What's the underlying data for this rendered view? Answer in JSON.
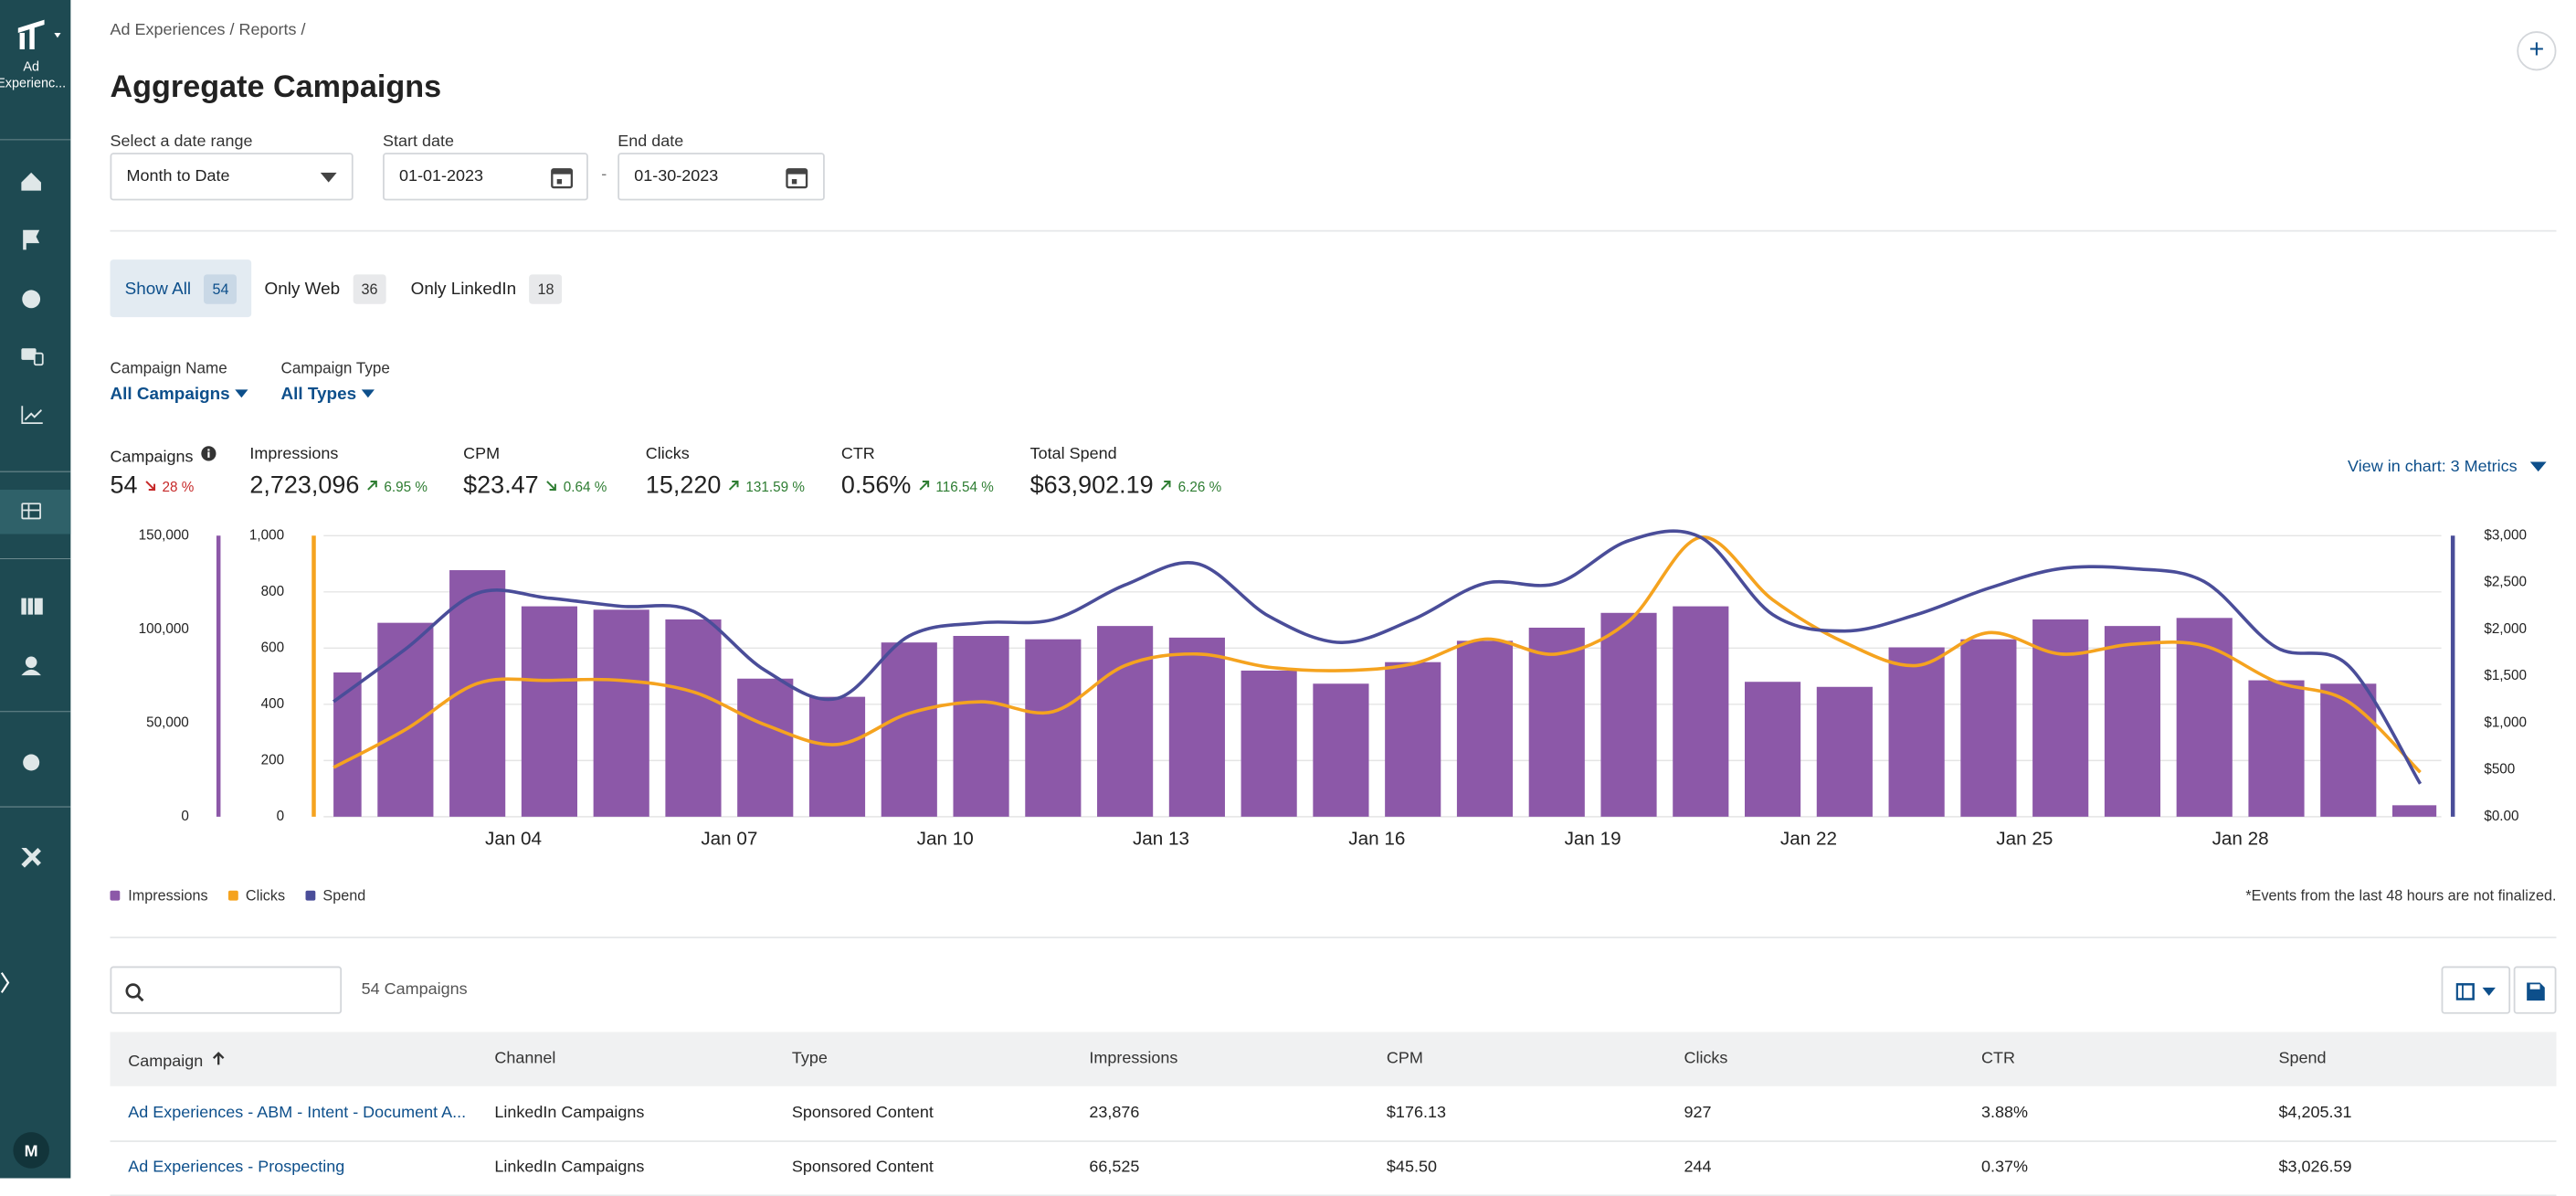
{
  "breadcrumb": [
    "Ad Experiences",
    "Reports"
  ],
  "sidebar": {
    "app_label_1": "Ad",
    "app_label_2": "Experienc...",
    "avatar": "M"
  },
  "title": "Aggregate Campaigns",
  "filters": {
    "date_range_label": "Select a date range",
    "date_range_value": "Month to Date",
    "start_label": "Start date",
    "start_value": "01-01-2023",
    "separator": "-",
    "end_label": "End date",
    "end_value": "01-30-2023"
  },
  "tabs": [
    {
      "label": "Show All",
      "count": "54",
      "active": true
    },
    {
      "label": "Only Web",
      "count": "36"
    },
    {
      "label": "Only LinkedIn",
      "count": "18"
    }
  ],
  "dropdowns": [
    {
      "label": "Campaign Name",
      "value": "All Campaigns"
    },
    {
      "label": "Campaign Type",
      "value": "All Types"
    }
  ],
  "metrics": [
    {
      "label": "Campaigns",
      "value": "54",
      "change": "28 %",
      "direction": "down",
      "color": "#c62828",
      "info": true
    },
    {
      "label": "Impressions",
      "value": "2,723,096",
      "change": "6.95 %",
      "direction": "up",
      "color": "#2e7d32"
    },
    {
      "label": "CPM",
      "value": "$23.47",
      "change": "0.64 %",
      "direction": "down",
      "color": "#2e7d32"
    },
    {
      "label": "Clicks",
      "value": "15,220",
      "change": "131.59 %",
      "direction": "up",
      "color": "#2e7d32"
    },
    {
      "label": "CTR",
      "value": "0.56%",
      "change": "116.54 %",
      "direction": "up",
      "color": "#2e7d32"
    },
    {
      "label": "Total Spend",
      "value": "$63,902.19",
      "change": "6.26 %",
      "direction": "up",
      "color": "#2e7d32"
    }
  ],
  "view_in_chart": "View in chart: 3 Metrics",
  "chart_data": {
    "type": "combo",
    "categories": [
      null,
      null,
      null,
      "Jan 04",
      null,
      null,
      "Jan 07",
      null,
      null,
      "Jan 10",
      null,
      null,
      "Jan 13",
      null,
      null,
      "Jan 16",
      null,
      null,
      "Jan 19",
      null,
      null,
      "Jan 22",
      null,
      null,
      "Jan 25",
      null,
      null,
      "Jan 28",
      null,
      null
    ],
    "series": [
      {
        "name": "Impressions",
        "type": "bar",
        "axis": "y",
        "color": "#8c58a8",
        "values": [
          77000,
          103500,
          131600,
          112300,
          110500,
          105300,
          73700,
          64000,
          93000,
          96500,
          94700,
          101800,
          95600,
          78000,
          71000,
          82500,
          93900,
          100900,
          108800,
          112300,
          72000,
          69300,
          90400,
          94700,
          105300,
          101800,
          106100,
          72800,
          71000,
          6100
        ]
      },
      {
        "name": "Clicks",
        "type": "line",
        "axis": "y2",
        "color": "#f5a31f",
        "values": [
          175,
          310,
          474,
          485,
          485,
          444,
          327,
          257,
          368,
          409,
          374,
          538,
          579,
          532,
          520,
          544,
          632,
          579,
          696,
          994,
          772,
          620,
          538,
          655,
          579,
          614,
          608,
          480,
          409,
          158
        ]
      },
      {
        "name": "Spend",
        "type": "line",
        "axis": "y3",
        "color": "#4a4d99",
        "values": [
          1228,
          1789,
          2386,
          2333,
          2246,
          2193,
          1561,
          1263,
          1930,
          2070,
          2105,
          2474,
          2702,
          2140,
          1860,
          2105,
          2491,
          2491,
          2947,
          2982,
          2158,
          1982,
          2158,
          2439,
          2649,
          2649,
          2509,
          1807,
          1614,
          351
        ]
      }
    ],
    "ylim": [
      0,
      150000
    ],
    "yticks": [
      0,
      {
        "value": 50000,
        "label": "50,000"
      },
      {
        "value": 100000,
        "label": "100,000"
      },
      {
        "value": 150000,
        "label": "150,000"
      }
    ],
    "y2lim": [
      0,
      1000
    ],
    "y2ticks": [
      0,
      200,
      400,
      600,
      800,
      {
        "value": 1000,
        "label": "1,000"
      }
    ],
    "y3lim": [
      0,
      3000
    ],
    "y3ticks": [
      {
        "value": 0,
        "label": "$0.00"
      },
      {
        "value": 500,
        "label": "$500"
      },
      {
        "value": 1000,
        "label": "$1,000"
      },
      {
        "value": 1500,
        "label": "$1,500"
      },
      {
        "value": 2000,
        "label": "$2,000"
      },
      {
        "value": 2500,
        "label": "$2,500"
      },
      {
        "value": 3000,
        "label": "$3,000"
      }
    ],
    "grid": true,
    "legend": "bottom-left"
  },
  "note": "*Events from the last 48 hours are not finalized.",
  "table": {
    "count": "54 Campaigns",
    "columns": [
      "Campaign",
      "Channel",
      "Type",
      "Impressions",
      "CPM",
      "Clicks",
      "CTR",
      "Spend"
    ],
    "rows": [
      [
        "Ad Experiences - ABM - Intent - Document A...",
        "LinkedIn Campaigns",
        "Sponsored Content",
        "23,876",
        "$176.13",
        "927",
        "3.88%",
        "$4,205.31"
      ],
      [
        "Ad Experiences - Prospecting",
        "LinkedIn Campaigns",
        "Sponsored Content",
        "66,525",
        "$45.50",
        "244",
        "0.37%",
        "$3,026.59"
      ]
    ]
  }
}
